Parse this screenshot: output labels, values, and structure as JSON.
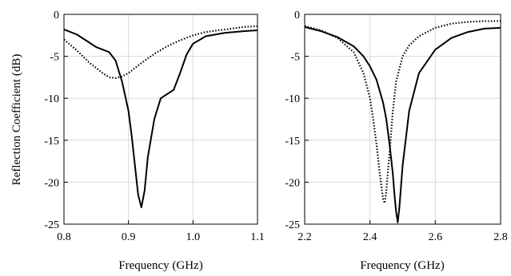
{
  "chart_data": [
    {
      "type": "line",
      "xlabel": "Frequency (GHz)",
      "ylabel": "Reflection Coefficient (dB)",
      "xlim": [
        0.8,
        1.1
      ],
      "ylim": [
        -25,
        0
      ],
      "xticks": [
        "0.8",
        "0.9",
        "1.0",
        "1.1"
      ],
      "yticks": [
        "0",
        "-5",
        "-10",
        "-15",
        "-20",
        "-25"
      ],
      "grid": true,
      "series": [
        {
          "style": "solid",
          "x": [
            0.8,
            0.82,
            0.84,
            0.85,
            0.86,
            0.87,
            0.88,
            0.89,
            0.9,
            0.905,
            0.91,
            0.915,
            0.92,
            0.925,
            0.93,
            0.94,
            0.95,
            0.96,
            0.97,
            0.98,
            0.99,
            1.0,
            1.02,
            1.05,
            1.08,
            1.1
          ],
          "y": [
            -1.8,
            -2.4,
            -3.4,
            -3.9,
            -4.2,
            -4.5,
            -5.5,
            -8.0,
            -11.5,
            -14.5,
            -18.0,
            -21.5,
            -23.0,
            -21.0,
            -17.0,
            -12.5,
            -10.0,
            -9.5,
            -9.0,
            -7.0,
            -4.8,
            -3.5,
            -2.6,
            -2.2,
            -2.0,
            -1.9
          ]
        },
        {
          "style": "dotted",
          "x": [
            0.8,
            0.82,
            0.84,
            0.86,
            0.87,
            0.88,
            0.89,
            0.9,
            0.92,
            0.94,
            0.96,
            0.98,
            1.0,
            1.02,
            1.05,
            1.08,
            1.1
          ],
          "y": [
            -3.0,
            -4.3,
            -5.8,
            -7.0,
            -7.5,
            -7.6,
            -7.4,
            -7.0,
            -5.8,
            -4.7,
            -3.8,
            -3.1,
            -2.5,
            -2.1,
            -1.8,
            -1.5,
            -1.4
          ]
        }
      ]
    },
    {
      "type": "line",
      "xlabel": "Frequency (GHz)",
      "ylabel": "",
      "xlim": [
        2.2,
        2.8
      ],
      "ylim": [
        -25,
        0
      ],
      "xticks": [
        "2.2",
        "2.4",
        "2.6",
        "2.8"
      ],
      "yticks": [
        "0",
        "-5",
        "-10",
        "-15",
        "-20",
        "-25"
      ],
      "grid": true,
      "series": [
        {
          "style": "solid",
          "x": [
            2.2,
            2.25,
            2.3,
            2.35,
            2.38,
            2.4,
            2.42,
            2.44,
            2.45,
            2.46,
            2.47,
            2.475,
            2.48,
            2.485,
            2.49,
            2.5,
            2.52,
            2.55,
            2.6,
            2.65,
            2.7,
            2.75,
            2.8
          ],
          "y": [
            -1.5,
            -2.0,
            -2.7,
            -3.8,
            -5.0,
            -6.2,
            -7.8,
            -10.5,
            -12.5,
            -15.5,
            -19.0,
            -21.5,
            -23.5,
            -24.8,
            -23.0,
            -18.0,
            -11.5,
            -7.0,
            -4.2,
            -2.8,
            -2.1,
            -1.7,
            -1.6
          ]
        },
        {
          "style": "dotted",
          "x": [
            2.2,
            2.25,
            2.3,
            2.35,
            2.38,
            2.4,
            2.41,
            2.42,
            2.43,
            2.44,
            2.445,
            2.45,
            2.46,
            2.47,
            2.48,
            2.5,
            2.52,
            2.55,
            2.6,
            2.65,
            2.7,
            2.75,
            2.8
          ],
          "y": [
            -1.4,
            -1.9,
            -2.8,
            -4.5,
            -7.0,
            -10.0,
            -12.5,
            -15.5,
            -19.0,
            -22.0,
            -22.5,
            -21.0,
            -16.5,
            -11.5,
            -8.0,
            -5.0,
            -3.7,
            -2.6,
            -1.6,
            -1.1,
            -0.9,
            -0.8,
            -0.8
          ]
        }
      ]
    }
  ]
}
